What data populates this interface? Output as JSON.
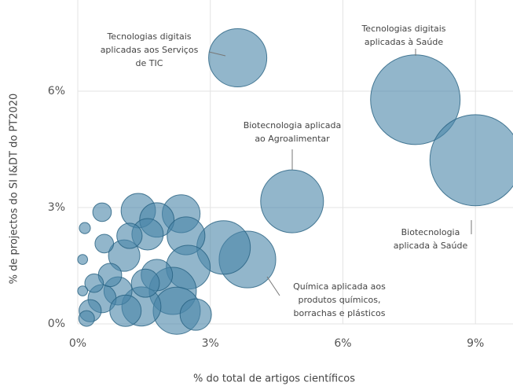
{
  "chart_data": {
    "type": "bubble",
    "x_label": "% do total de artigos científicos",
    "y_label": "% de projectos do SI I&DT do PT2020",
    "xlim": [
      0,
      9.85
    ],
    "ylim": [
      0,
      8.35
    ],
    "xticks": [
      {
        "value": 0,
        "label": "0%"
      },
      {
        "value": 3,
        "label": "3%"
      },
      {
        "value": 6,
        "label": "6%"
      },
      {
        "value": 9,
        "label": "9%"
      }
    ],
    "yticks": [
      {
        "value": 0,
        "label": "0%"
      },
      {
        "value": 3,
        "label": "3%"
      },
      {
        "value": 6,
        "label": "6%"
      }
    ],
    "grid": true,
    "color": "#4a86a8",
    "x": [
      3.62,
      7.64,
      9.0,
      4.85,
      3.84,
      3.3,
      2.34,
      1.37,
      1.79,
      1.58,
      2.45,
      2.5,
      2.15,
      2.24,
      1.05,
      1.17,
      0.55,
      0.6,
      0.16,
      0.11,
      1.44,
      0.91,
      0.55,
      0.28,
      0.2,
      1.79,
      0.73,
      0.37,
      1.08,
      0.11,
      1.53,
      2.67
    ],
    "values": [
      6.86,
      5.78,
      4.22,
      3.16,
      1.66,
      1.97,
      2.84,
      2.92,
      2.68,
      2.31,
      2.27,
      1.46,
      0.85,
      0.34,
      1.76,
      2.27,
      2.88,
      2.07,
      2.47,
      1.66,
      0.45,
      0.85,
      0.65,
      0.34,
      0.14,
      1.26,
      1.26,
      1.05,
      0.34,
      0.85,
      1.05,
      0.24
    ],
    "sizes": [
      137,
      325,
      336,
      160,
      130,
      116,
      58,
      48,
      48,
      40,
      58,
      78,
      90,
      90,
      40,
      26,
      14,
      14,
      5,
      4,
      62,
      32,
      32,
      20,
      10,
      40,
      22,
      14,
      40,
      4,
      32,
      40
    ],
    "annotations": [
      {
        "text": [
          "Tecnologias digitais",
          "aplicadas aos Serviços",
          "de TIC"
        ]
      },
      {
        "text": [
          "Tecnologias digitais",
          "aplicadas à Saúde"
        ]
      },
      {
        "text": [
          "Biotecnologia aplicada",
          "ao Agroalimentar"
        ]
      },
      {
        "text": [
          "Biotecnologia",
          "aplicada à Saúde"
        ]
      },
      {
        "text": [
          "Química aplicada aos",
          "produtos químicos,",
          "borrachas e plásticos"
        ]
      }
    ]
  }
}
